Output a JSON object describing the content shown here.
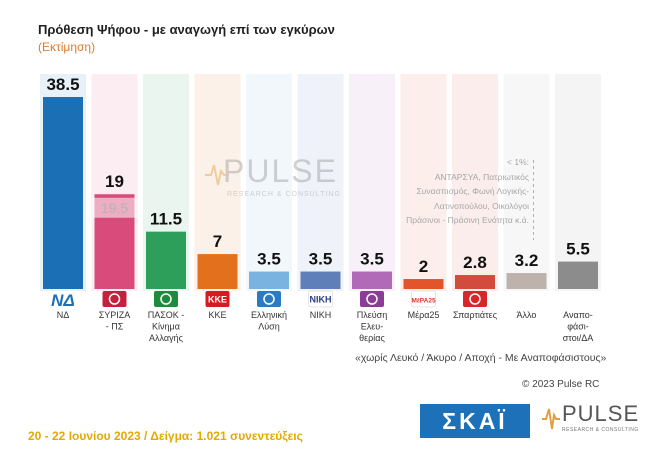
{
  "header": {
    "title": "Πρόθεση Ψήφου - με αναγωγή επί των εγκύρων",
    "subtitle": "(Εκτίμηση)"
  },
  "chart_data": {
    "type": "bar",
    "title": "Πρόθεση Ψήφου - με αναγωγή επί των εγκύρων",
    "subtitle": "(Εκτίμηση)",
    "categories": [
      "ΝΔ",
      "ΣΥΡΙΖΑ - ΠΣ",
      "ΠΑΣΟΚ - Κίνημα Αλλαγής",
      "ΚΚΕ",
      "Ελληνική Λύση",
      "ΝΙΚΗ",
      "Πλεύση Ελευθερίας",
      "Μέρα25",
      "Σπαρτιάτες",
      "Άλλο",
      "Αναποφάσιστοι/ΔΑ"
    ],
    "category_lines": [
      [
        "ΝΔ"
      ],
      [
        "ΣΥΡΙΖΑ",
        "- ΠΣ"
      ],
      [
        "ΠΑΣΟΚ -",
        "Κίνημα",
        "Αλλαγής"
      ],
      [
        "ΚΚΕ"
      ],
      [
        "Ελληνική",
        "Λύση"
      ],
      [
        "ΝΙΚΗ"
      ],
      [
        "Πλεύση",
        "Ελευ-",
        "θερίας"
      ],
      [
        "Μέρα25"
      ],
      [
        "Σπαρτιάτες"
      ],
      [
        "Άλλο"
      ],
      [
        "Αναπο-",
        "φάσι-",
        "στοι/ΔΑ"
      ]
    ],
    "values": [
      38.5,
      19,
      11.5,
      7,
      3.5,
      3.5,
      3.5,
      2,
      2.8,
      3.2,
      5.5
    ],
    "value_labels": [
      "38.5",
      "19",
      "11.5",
      "7",
      "3.5",
      "3.5",
      "3.5",
      "2",
      "2.8",
      "3.2",
      "5.5"
    ],
    "colors": [
      "#1b6fb5",
      "#d94b7a",
      "#2e9e5b",
      "#e2701d",
      "#7bb3e0",
      "#5f7fb8",
      "#b06ab8",
      "#e4542a",
      "#d34b3d",
      "#bdb2ac",
      "#8c8c8c"
    ],
    "previous": {
      "category": "ΣΥΡΙΖΑ - ΠΣ",
      "value": 19.5,
      "label": "19.5"
    },
    "other_note": {
      "prefix": "< 1%:",
      "lines": [
        "ΑΝΤΑΡΣΥΑ, Πατριωτικός",
        "Συνασπισμός, Φωνή Λογικής-",
        "Λατινοπούλου, Οικολόγοι",
        "Πράσινοι - Πράσινη Ενότητα   κ.ά."
      ]
    },
    "ylim": [
      0,
      40
    ],
    "grid": false,
    "legend": "none"
  },
  "logos": [
    {
      "name": "ΝΔ",
      "text": "ΝΔ",
      "color": "#1b6fb5",
      "text_color": "#1b6fb5"
    },
    {
      "name": "ΣΥΡΙΖΑ",
      "text": "",
      "color": "#c4203f",
      "text_color": "#ffffff"
    },
    {
      "name": "ΠΑΣΟΚ",
      "text": "",
      "color": "#1e8a3b",
      "text_color": "#ffffff"
    },
    {
      "name": "ΚΚΕ",
      "text": "ΚΚΕ",
      "color": "#d71920",
      "text_color": "#ffffff"
    },
    {
      "name": "Ελληνική Λύση",
      "text": "",
      "color": "#2a7ac4",
      "text_color": "#ffffff"
    },
    {
      "name": "ΝΙΚΗ",
      "text": "ΝΙΚΗ",
      "color": "#ffffff",
      "text_color": "#2b3f86"
    },
    {
      "name": "Πλεύση Ελευθερίας",
      "text": "",
      "color": "#8a3c96",
      "text_color": "#ffffff"
    },
    {
      "name": "Μέρα25",
      "text": "ΜέΡΑ25",
      "color": "#ffffff",
      "text_color": "#e0322b"
    },
    {
      "name": "Σπαρτιάτες",
      "text": "",
      "color": "#d8262a",
      "text_color": "#ffffff"
    }
  ],
  "footnote": "«χωρίς Λευκό / Άκυρο / Αποχή - Με Αναποφάσιστους»",
  "copyright": "© 2023 Pulse RC",
  "fieldwork": "20 - 22 Ιουνίου  2023  /  Δείγμα:  1.021 συνεντεύξεις",
  "watermark": {
    "word": "PULSE",
    "sub": "RESEARCH & CONSULTING"
  },
  "brand": {
    "skai": "ΣΚΑΪ",
    "pulse": "PULSE",
    "pulse_sub": "RESEARCH & CONSULTING"
  }
}
